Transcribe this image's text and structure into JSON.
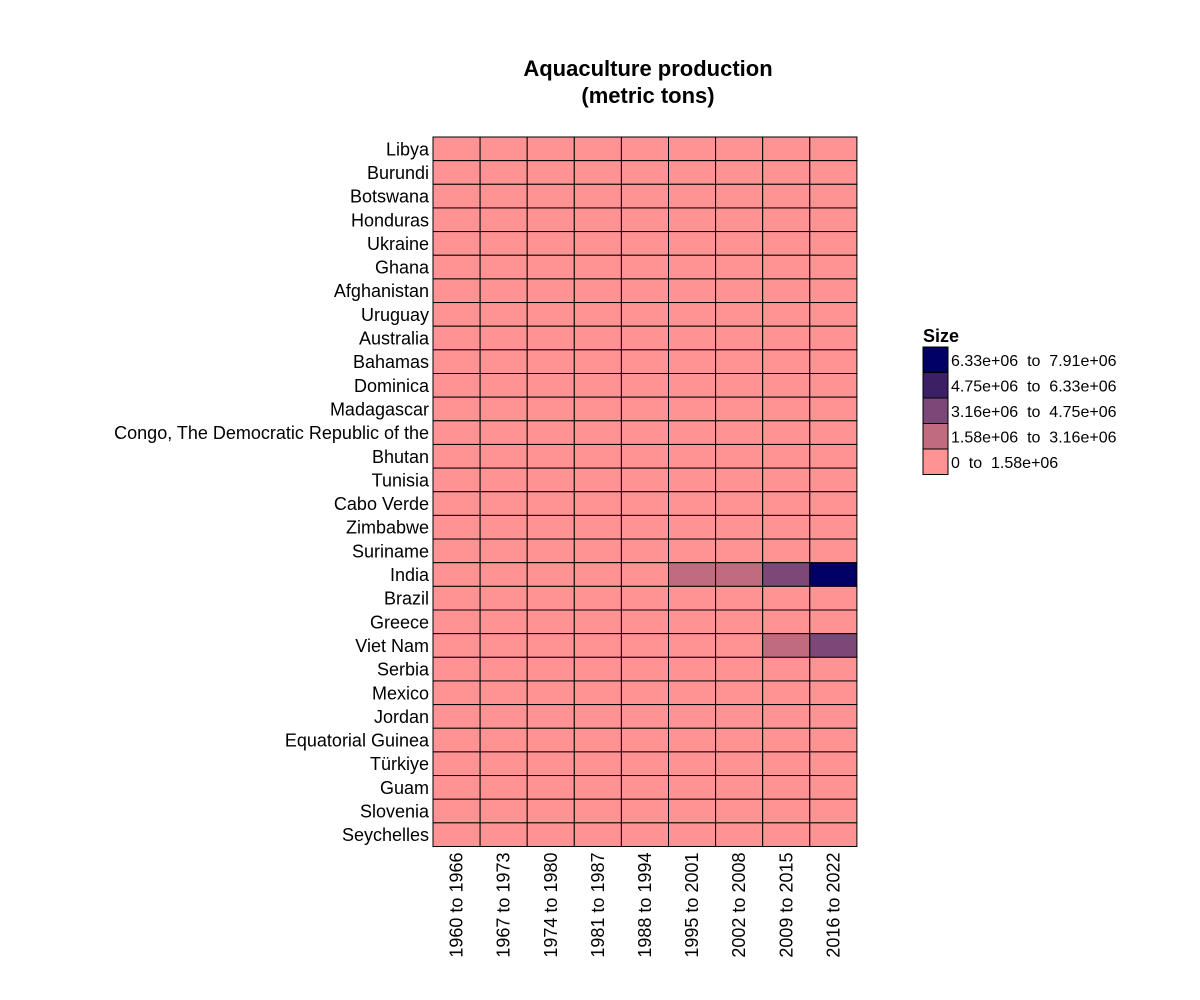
{
  "chart_data": {
    "type": "heatmap",
    "title": [
      "Aquaculture production",
      "(metric tons)"
    ],
    "rows": [
      "Libya",
      "Burundi",
      "Botswana",
      "Honduras",
      "Ukraine",
      "Ghana",
      "Afghanistan",
      "Uruguay",
      "Australia",
      "Bahamas",
      "Dominica",
      "Madagascar",
      "Congo, The Democratic Republic of the",
      "Bhutan",
      "Tunisia",
      "Cabo Verde",
      "Zimbabwe",
      "Suriname",
      "India",
      "Brazil",
      "Greece",
      "Viet Nam",
      "Serbia",
      "Mexico",
      "Jordan",
      "Equatorial Guinea",
      "Türkiye",
      "Guam",
      "Slovenia",
      "Seychelles"
    ],
    "columns": [
      "1960 to 1966",
      "1967 to 1973",
      "1974 to 1980",
      "1981 to 1987",
      "1988 to 1994",
      "1995 to 2001",
      "2002 to 2008",
      "2009 to 2015",
      "2016 to 2022"
    ],
    "bin_matrix": [
      [
        0,
        0,
        0,
        0,
        0,
        0,
        0,
        0,
        0
      ],
      [
        0,
        0,
        0,
        0,
        0,
        0,
        0,
        0,
        0
      ],
      [
        0,
        0,
        0,
        0,
        0,
        0,
        0,
        0,
        0
      ],
      [
        0,
        0,
        0,
        0,
        0,
        0,
        0,
        0,
        0
      ],
      [
        0,
        0,
        0,
        0,
        0,
        0,
        0,
        0,
        0
      ],
      [
        0,
        0,
        0,
        0,
        0,
        0,
        0,
        0,
        0
      ],
      [
        0,
        0,
        0,
        0,
        0,
        0,
        0,
        0,
        0
      ],
      [
        0,
        0,
        0,
        0,
        0,
        0,
        0,
        0,
        0
      ],
      [
        0,
        0,
        0,
        0,
        0,
        0,
        0,
        0,
        0
      ],
      [
        0,
        0,
        0,
        0,
        0,
        0,
        0,
        0,
        0
      ],
      [
        0,
        0,
        0,
        0,
        0,
        0,
        0,
        0,
        0
      ],
      [
        0,
        0,
        0,
        0,
        0,
        0,
        0,
        0,
        0
      ],
      [
        0,
        0,
        0,
        0,
        0,
        0,
        0,
        0,
        0
      ],
      [
        0,
        0,
        0,
        0,
        0,
        0,
        0,
        0,
        0
      ],
      [
        0,
        0,
        0,
        0,
        0,
        0,
        0,
        0,
        0
      ],
      [
        0,
        0,
        0,
        0,
        0,
        0,
        0,
        0,
        0
      ],
      [
        0,
        0,
        0,
        0,
        0,
        0,
        0,
        0,
        0
      ],
      [
        0,
        0,
        0,
        0,
        0,
        0,
        0,
        0,
        0
      ],
      [
        0,
        0,
        0,
        0,
        0,
        1,
        1,
        2,
        4
      ],
      [
        0,
        0,
        0,
        0,
        0,
        0,
        0,
        0,
        0
      ],
      [
        0,
        0,
        0,
        0,
        0,
        0,
        0,
        0,
        0
      ],
      [
        0,
        0,
        0,
        0,
        0,
        0,
        0,
        1,
        2
      ],
      [
        0,
        0,
        0,
        0,
        0,
        0,
        0,
        0,
        0
      ],
      [
        0,
        0,
        0,
        0,
        0,
        0,
        0,
        0,
        0
      ],
      [
        0,
        0,
        0,
        0,
        0,
        0,
        0,
        0,
        0
      ],
      [
        0,
        0,
        0,
        0,
        0,
        0,
        0,
        0,
        0
      ],
      [
        0,
        0,
        0,
        0,
        0,
        0,
        0,
        0,
        0
      ],
      [
        0,
        0,
        0,
        0,
        0,
        0,
        0,
        0,
        0
      ],
      [
        0,
        0,
        0,
        0,
        0,
        0,
        0,
        0,
        0
      ],
      [
        0,
        0,
        0,
        0,
        0,
        0,
        0,
        0,
        0
      ]
    ],
    "legend": {
      "title": "Size",
      "bins": [
        {
          "label": "6.33e+06  to  7.91e+06",
          "color": "#000066"
        },
        {
          "label": "4.75e+06  to  6.33e+06",
          "color": "#3d1f66"
        },
        {
          "label": "3.16e+06  to  4.75e+06",
          "color": "#7b4878"
        },
        {
          "label": "1.58e+06  to  3.16e+06",
          "color": "#c06b7e"
        },
        {
          "label": "0  to  1.58e+06",
          "color": "#ff9393"
        }
      ]
    },
    "grid": true,
    "legend_position": "right"
  }
}
